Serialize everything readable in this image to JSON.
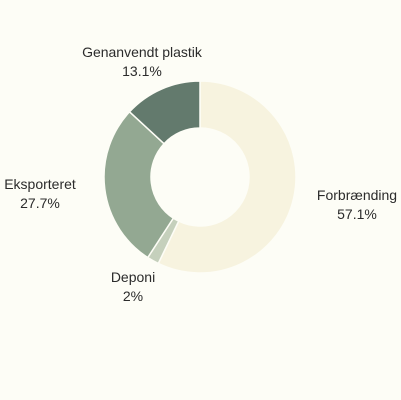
{
  "chart_data": {
    "type": "pie",
    "donut": true,
    "slices": [
      {
        "label": "Forbrænding",
        "value": 57.1,
        "value_text": "57.1%",
        "color": "#f7f3df"
      },
      {
        "label": "Deponi",
        "value": 2.0,
        "value_text": "2%",
        "color": "#c5d0bc"
      },
      {
        "label": "Eksporteret",
        "value": 27.7,
        "value_text": "27.7%",
        "color": "#93a892"
      },
      {
        "label": "Genanvendt plastik",
        "value": 13.1,
        "value_text": "13.1%",
        "color": "#637a6d"
      }
    ]
  },
  "colors": {
    "background": "#fdfdf6",
    "slice_stroke": "#fdfdf6"
  }
}
